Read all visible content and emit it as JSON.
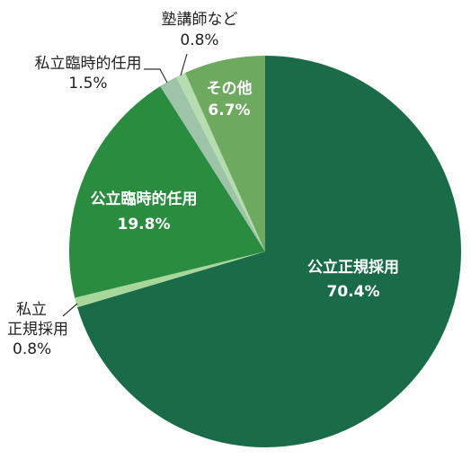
{
  "chart_data": {
    "type": "pie",
    "title": "",
    "start": "top",
    "direction": "clockwise",
    "slices": [
      {
        "label": "公立正規採用",
        "value": 70.4,
        "pct": "70.4%",
        "color": "#1a6b48"
      },
      {
        "label_lines": [
          "私立",
          "正規採用"
        ],
        "value": 0.8,
        "pct": "0.8%",
        "color": "#a8d79a"
      },
      {
        "label": "公立臨時的任用",
        "value": 19.8,
        "pct": "19.8%",
        "color": "#2a8c3f"
      },
      {
        "label": "私立臨時的任用",
        "value": 1.5,
        "pct": "1.5%",
        "color": "#9dc4a8"
      },
      {
        "label": "塾講師など",
        "value": 0.8,
        "pct": "0.8%",
        "color": "#b5ddb0"
      },
      {
        "label": "その他",
        "value": 6.7,
        "pct": "6.7%",
        "color": "#6ea960"
      }
    ]
  }
}
